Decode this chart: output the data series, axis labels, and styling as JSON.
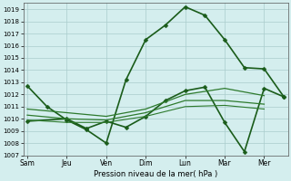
{
  "background_color": "#d4eeee",
  "grid_color": "#aacccc",
  "xlabel": "Pression niveau de la mer( hPa )",
  "ylim": [
    1007,
    1019.5
  ],
  "yticks": [
    1007,
    1008,
    1009,
    1010,
    1011,
    1012,
    1013,
    1014,
    1015,
    1016,
    1017,
    1018,
    1019
  ],
  "x_labels": [
    "Sam",
    "Jeu",
    "Ven",
    "Dim",
    "Lun",
    "Mar",
    "Mer"
  ],
  "x_positions": [
    0,
    1,
    2,
    3,
    4,
    5,
    6
  ],
  "xlim": [
    -0.1,
    6.6
  ],
  "series": [
    {
      "x": [
        0,
        0.5,
        1.0,
        1.5,
        2.0,
        2.5,
        3.0,
        3.5,
        4.0,
        4.5,
        5.0,
        5.5,
        6.0,
        6.5
      ],
      "y": [
        1012.7,
        1011.0,
        1009.9,
        1009.1,
        1008.0,
        1013.2,
        1016.5,
        1017.7,
        1019.2,
        1018.5,
        1016.5,
        1014.2,
        1014.1,
        1011.8
      ],
      "color": "#1a5c1a",
      "lw": 1.2,
      "marker": "D",
      "ms": 2.5
    },
    {
      "x": [
        0,
        1,
        1.5,
        2,
        2.5,
        3,
        3.5,
        4,
        4.5,
        5,
        5.5,
        6,
        6.5
      ],
      "y": [
        1009.8,
        1010.0,
        1009.2,
        1009.8,
        1009.3,
        1010.2,
        1011.5,
        1012.3,
        1012.6,
        1009.7,
        1007.3,
        1012.5,
        1011.8
      ],
      "color": "#1a5c1a",
      "lw": 1.2,
      "marker": "D",
      "ms": 2.5
    },
    {
      "x": [
        0,
        1,
        2,
        3,
        4,
        5,
        6
      ],
      "y": [
        1010.8,
        1010.5,
        1010.2,
        1010.8,
        1012.0,
        1012.5,
        1011.9
      ],
      "color": "#2d7a2d",
      "lw": 0.9,
      "marker": null,
      "ms": 0
    },
    {
      "x": [
        0,
        1,
        2,
        3,
        4,
        5,
        6
      ],
      "y": [
        1010.3,
        1010.0,
        1009.9,
        1010.5,
        1011.5,
        1011.5,
        1011.2
      ],
      "color": "#2d7a2d",
      "lw": 0.9,
      "marker": null,
      "ms": 0
    },
    {
      "x": [
        0,
        1,
        2,
        3,
        4,
        5,
        6
      ],
      "y": [
        1009.9,
        1009.7,
        1009.7,
        1010.2,
        1011.0,
        1011.1,
        1010.8
      ],
      "color": "#2d7a2d",
      "lw": 0.8,
      "marker": null,
      "ms": 0
    }
  ]
}
